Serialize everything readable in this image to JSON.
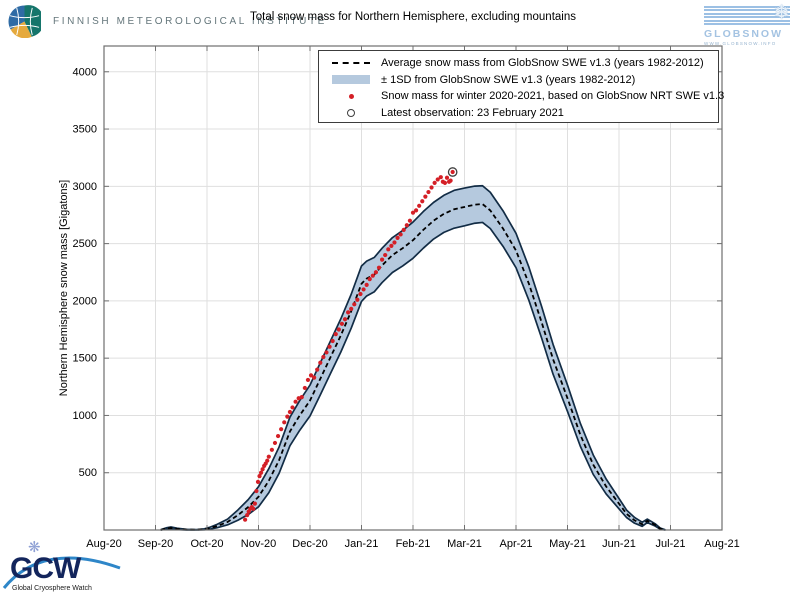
{
  "header": {
    "fmi_logo_text": "FINNISH METEOROLOGICAL INSTITUTE",
    "title": "Total snow mass for Northern Hemisphere, excluding mountains"
  },
  "globsnow_logo": {
    "name": "GLOBSNOW",
    "url": "WWW.GLOBSNOW.INFO",
    "snowflake_icon": "❄"
  },
  "gcw_logo": {
    "acronym": "GCW",
    "subtitle": "Global Cryosphere Watch",
    "snowflake_icon": "❋"
  },
  "legend": {
    "items": [
      {
        "marker": "dashed-line",
        "label": "Average snow mass from GlobSnow SWE v1.3 (years 1982-2012)"
      },
      {
        "marker": "band-patch",
        "label": "± 1SD from GlobSnow SWE v1.3 (years 1982-2012)"
      },
      {
        "marker": "red-dot",
        "label": "Snow mass for winter 2020-2021, based on GlobSnow NRT SWE v1.3"
      },
      {
        "marker": "open-circle",
        "label": "Latest observation: 23 February 2021"
      }
    ]
  },
  "chart_data": {
    "type": "line",
    "title": "Total snow mass for Northern Hemisphere, excluding mountains",
    "xlabel": "",
    "ylabel": "Northern Hemisphere snow mass [Gigatons]",
    "xlim": [
      0,
      12
    ],
    "ylim": [
      0,
      4225
    ],
    "grid": true,
    "legend_position": "top-right",
    "x_tick_positions": [
      0,
      1,
      2,
      3,
      4,
      5,
      6,
      7,
      8,
      9,
      10,
      11,
      12
    ],
    "x_tick_labels": [
      "Aug-20",
      "Sep-20",
      "Oct-20",
      "Nov-20",
      "Dec-20",
      "Jan-21",
      "Feb-21",
      "Mar-21",
      "Apr-21",
      "May-21",
      "Jun-21",
      "Jul-21",
      "Aug-21"
    ],
    "y_ticks": [
      500,
      1000,
      1500,
      2000,
      2500,
      3000,
      3500,
      4000
    ],
    "colors": {
      "grid": "#dfdfdf",
      "axis": "#6f6f6f",
      "band_fill": "#b5c9de",
      "band_edge": "#122c45",
      "mean_line": "#000000",
      "scatter": "#d41f26",
      "ring": "#3f3f3f"
    },
    "mean": {
      "name": "Average snow mass from GlobSnow SWE v1.3 (years 1982-2012)",
      "x": [
        1.1,
        1.22,
        1.3,
        1.42,
        1.6,
        1.8,
        1.95,
        2.05,
        2.2,
        2.4,
        2.6,
        2.8,
        3.0,
        3.2,
        3.4,
        3.61,
        3.8,
        4.0,
        4.2,
        4.4,
        4.6,
        4.8,
        5.0,
        5.1,
        5.25,
        5.4,
        5.6,
        5.8,
        6.0,
        6.2,
        6.4,
        6.6,
        6.8,
        7.0,
        7.2,
        7.35,
        7.5,
        7.75,
        8.0,
        8.25,
        8.5,
        8.72,
        9.0,
        9.25,
        9.5,
        9.75,
        10.0,
        10.15,
        10.3,
        10.45,
        10.55,
        10.7,
        10.8,
        10.9
      ],
      "y": [
        0,
        14,
        18,
        10,
        3,
        2,
        6,
        15,
        35,
        70,
        130,
        200,
        290,
        430,
        610,
        860,
        1000,
        1130,
        1320,
        1510,
        1700,
        1910,
        2150,
        2195,
        2230,
        2310,
        2400,
        2460,
        2530,
        2620,
        2700,
        2760,
        2800,
        2820,
        2840,
        2845,
        2790,
        2630,
        2440,
        2150,
        1810,
        1490,
        1150,
        830,
        570,
        380,
        230,
        140,
        85,
        50,
        80,
        45,
        12,
        0
      ]
    },
    "band": {
      "name": "± 1SD from GlobSnow SWE v1.3 (years 1982-2012)",
      "sd": [
        3,
        6,
        8,
        6,
        3,
        2,
        4,
        8,
        15,
        25,
        45,
        65,
        88,
        105,
        115,
        125,
        130,
        135,
        140,
        142,
        145,
        148,
        155,
        152,
        150,
        150,
        152,
        155,
        158,
        160,
        160,
        162,
        165,
        165,
        162,
        160,
        158,
        155,
        150,
        145,
        138,
        130,
        115,
        100,
        85,
        65,
        45,
        32,
        25,
        18,
        15,
        10,
        5,
        2
      ]
    },
    "scatter": {
      "name": "Snow mass for winter 2020-2021, based on GlobSnow NRT SWE v1.3",
      "x": [
        2.74,
        2.78,
        2.81,
        2.84,
        2.87,
        2.9,
        2.93,
        2.96,
        2.99,
        3.02,
        3.05,
        3.08,
        3.11,
        3.14,
        3.17,
        3.2,
        3.26,
        3.32,
        3.38,
        3.44,
        3.5,
        3.56,
        3.61,
        3.66,
        3.72,
        3.78,
        3.84,
        3.9,
        3.96,
        4.02,
        4.08,
        4.14,
        4.2,
        4.26,
        4.32,
        4.38,
        4.44,
        4.5,
        4.56,
        4.62,
        4.68,
        4.74,
        4.8,
        4.86,
        4.92,
        4.98,
        5.04,
        5.1,
        5.16,
        5.22,
        5.28,
        5.34,
        5.4,
        5.46,
        5.52,
        5.58,
        5.64,
        5.7,
        5.76,
        5.82,
        5.88,
        5.94,
        6.0,
        6.06,
        6.12,
        6.18,
        6.24,
        6.3,
        6.36,
        6.42,
        6.48,
        6.54,
        6.58,
        6.62,
        6.66,
        6.7,
        6.73
      ],
      "y": [
        90,
        130,
        160,
        185,
        200,
        185,
        230,
        340,
        420,
        470,
        500,
        530,
        560,
        580,
        605,
        640,
        700,
        760,
        820,
        880,
        940,
        990,
        1030,
        1070,
        1120,
        1150,
        1160,
        1240,
        1310,
        1350,
        1330,
        1400,
        1460,
        1510,
        1550,
        1600,
        1650,
        1710,
        1750,
        1800,
        1840,
        1900,
        1930,
        1970,
        2010,
        2060,
        2100,
        2140,
        2190,
        2220,
        2250,
        2290,
        2360,
        2400,
        2450,
        2480,
        2510,
        2550,
        2580,
        2620,
        2660,
        2700,
        2770,
        2790,
        2830,
        2870,
        2910,
        2950,
        2990,
        3030,
        3060,
        3080,
        3040,
        3030,
        3075,
        3040,
        3050
      ]
    },
    "latest_observation": {
      "label": "Latest observation: 23 February 2021",
      "x": 6.77,
      "y": 3125
    }
  }
}
